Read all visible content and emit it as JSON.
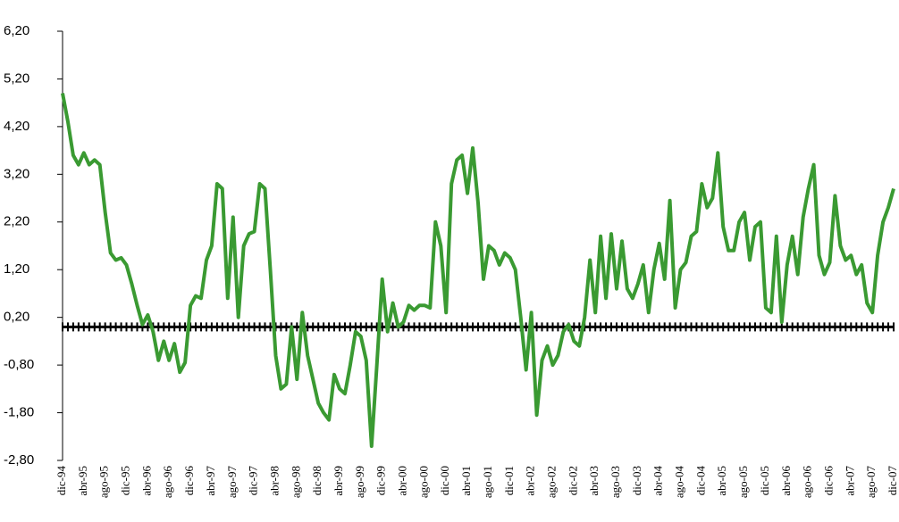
{
  "chart_data": {
    "type": "line",
    "categories": [
      "dic-94",
      null,
      null,
      null,
      "abr-95",
      null,
      null,
      null,
      "ago-95",
      null,
      null,
      null,
      "dic-95",
      null,
      null,
      null,
      "abr-96",
      null,
      null,
      null,
      "ago-96",
      null,
      null,
      null,
      "dic-96",
      null,
      null,
      null,
      "abr-97",
      null,
      null,
      null,
      "ago-97",
      null,
      null,
      null,
      "dic-97",
      null,
      null,
      null,
      "abr-98",
      null,
      null,
      null,
      "ago-98",
      null,
      null,
      null,
      "dic-98",
      null,
      null,
      null,
      "abr-99",
      null,
      null,
      null,
      "ago-99",
      null,
      null,
      null,
      "dic-99",
      null,
      null,
      null,
      "abr-00",
      null,
      null,
      null,
      "ago-00",
      null,
      null,
      null,
      "dic-00",
      null,
      null,
      null,
      "abr-01",
      null,
      null,
      null,
      "ago-01",
      null,
      null,
      null,
      "dic-01",
      null,
      null,
      null,
      "abr-02",
      null,
      null,
      null,
      "ago-02",
      null,
      null,
      null,
      "dic-02",
      null,
      null,
      null,
      "abr-03",
      null,
      null,
      null,
      "ago-03",
      null,
      null,
      null,
      "dic-03",
      null,
      null,
      null,
      "abr-04",
      null,
      null,
      null,
      "ago-04",
      null,
      null,
      null,
      "dic-04",
      null,
      null,
      null,
      "abr-05",
      null,
      null,
      null,
      "ago-05",
      null,
      null,
      null,
      "dic-05",
      null,
      null,
      null,
      "abr-06",
      null,
      null,
      null,
      "ago-06",
      null,
      null,
      null,
      "dic-06",
      null,
      null,
      null,
      "abr-07",
      null,
      null,
      null,
      "ago-07",
      null,
      null,
      null,
      "dic-07"
    ],
    "series": [
      {
        "color": "#3a9a32",
        "values": [
          4.9,
          4.3,
          3.6,
          3.4,
          3.65,
          3.4,
          3.5,
          3.4,
          2.4,
          1.55,
          1.4,
          1.45,
          1.3,
          0.9,
          0.45,
          0.05,
          0.25,
          -0.1,
          -0.7,
          -0.3,
          -0.7,
          -0.35,
          -0.95,
          -0.75,
          0.45,
          0.65,
          0.6,
          1.4,
          1.7,
          3.0,
          2.9,
          0.6,
          2.3,
          0.2,
          1.7,
          1.95,
          2.0,
          3.0,
          2.9,
          1.2,
          -0.6,
          -1.3,
          -1.2,
          0.0,
          -1.1,
          0.3,
          -0.6,
          -1.1,
          -1.6,
          -1.8,
          -1.95,
          -1.0,
          -1.3,
          -1.4,
          -0.8,
          -0.1,
          -0.2,
          -0.7,
          -2.5,
          -0.8,
          1.0,
          -0.1,
          0.5,
          0.0,
          0.1,
          0.45,
          0.35,
          0.45,
          0.45,
          0.4,
          2.2,
          1.7,
          0.3,
          3.0,
          3.5,
          3.6,
          2.8,
          3.75,
          2.6,
          1.0,
          1.7,
          1.6,
          1.3,
          1.55,
          1.45,
          1.2,
          0.2,
          -0.9,
          0.3,
          -1.85,
          -0.7,
          -0.4,
          -0.8,
          -0.6,
          -0.1,
          0.05,
          -0.3,
          -0.4,
          0.2,
          1.4,
          0.3,
          1.9,
          0.6,
          1.95,
          0.8,
          1.8,
          0.8,
          0.6,
          0.9,
          1.3,
          0.3,
          1.2,
          1.75,
          1.0,
          2.65,
          0.4,
          1.2,
          1.35,
          1.9,
          2.0,
          3.0,
          2.5,
          2.7,
          3.65,
          2.1,
          1.6,
          1.6,
          2.2,
          2.4,
          1.4,
          2.1,
          2.2,
          0.4,
          0.3,
          1.9,
          0.1,
          1.3,
          1.9,
          1.1,
          2.3,
          2.9,
          3.4,
          1.5,
          1.1,
          1.35,
          2.75,
          1.7,
          1.4,
          1.5,
          1.1,
          1.3,
          0.5,
          0.3,
          1.5,
          2.2,
          2.5,
          2.9
        ]
      }
    ],
    "reference_line": {
      "value": 0,
      "color": "#000000"
    },
    "ylim": [
      -2.8,
      6.2
    ],
    "yticks": [
      {
        "value": -2.8,
        "label": "-2,80"
      },
      {
        "value": -1.8,
        "label": "-1,80"
      },
      {
        "value": -0.8,
        "label": "-0,80"
      },
      {
        "value": 0.2,
        "label": "0,20"
      },
      {
        "value": 1.2,
        "label": "1,20"
      },
      {
        "value": 2.2,
        "label": "2,20"
      },
      {
        "value": 3.2,
        "label": "3,20"
      },
      {
        "value": 4.2,
        "label": "4,20"
      },
      {
        "value": 5.2,
        "label": "5,20"
      },
      {
        "value": 6.2,
        "label": "6,20"
      }
    ]
  }
}
